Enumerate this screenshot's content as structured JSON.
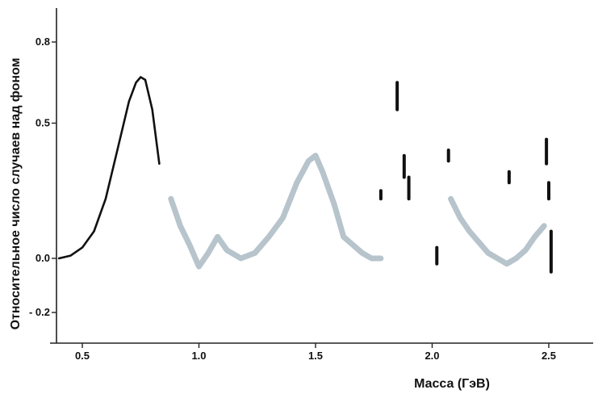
{
  "chart_data": {
    "type": "line",
    "title": "",
    "xlabel": "Масса  (ГэВ)",
    "ylabel": "Относительное число случаев над фоном",
    "xlim": [
      0.4,
      2.6
    ],
    "ylim": [
      -0.3,
      0.9
    ],
    "x_ticks": [
      {
        "value": 0.5,
        "label": "0.5"
      },
      {
        "value": 1.0,
        "label": "1.0"
      },
      {
        "value": 1.5,
        "label": "1.5"
      },
      {
        "value": 2.0,
        "label": "2.0"
      },
      {
        "value": 2.5,
        "label": "2.5"
      }
    ],
    "y_ticks": [
      {
        "value": 0.8,
        "label": "0.8"
      },
      {
        "value": 0.5,
        "label": "0.5"
      },
      {
        "value": 0.0,
        "label": "0.0"
      },
      {
        "value": -0.2,
        "label": "- 0.2"
      }
    ],
    "grid": false,
    "series": [
      {
        "style": "solid",
        "x": [
          0.4,
          0.45,
          0.5,
          0.55,
          0.6,
          0.65,
          0.7,
          0.73,
          0.75,
          0.77,
          0.8,
          0.83
        ],
        "y": [
          0.0,
          0.01,
          0.04,
          0.1,
          0.22,
          0.4,
          0.58,
          0.65,
          0.67,
          0.66,
          0.55,
          0.35
        ]
      },
      {
        "style": "smeared",
        "x": [
          0.88,
          0.92,
          0.96,
          1.0,
          1.04,
          1.08,
          1.12,
          1.18,
          1.24,
          1.3,
          1.36,
          1.42,
          1.47,
          1.5,
          1.53,
          1.58,
          1.62,
          1.66,
          1.7,
          1.74,
          1.78
        ],
        "y": [
          0.22,
          0.12,
          0.05,
          -0.03,
          0.02,
          0.08,
          0.03,
          0.0,
          0.02,
          0.08,
          0.15,
          0.28,
          0.36,
          0.38,
          0.32,
          0.2,
          0.08,
          0.05,
          0.02,
          0.0,
          0.0
        ]
      },
      {
        "style": "smeared",
        "x": [
          2.08,
          2.12,
          2.16,
          2.2,
          2.24,
          2.28,
          2.32,
          2.36,
          2.4,
          2.44,
          2.48
        ],
        "y": [
          0.22,
          0.15,
          0.1,
          0.06,
          0.02,
          0.0,
          -0.02,
          0.0,
          0.03,
          0.08,
          0.12
        ]
      }
    ],
    "spikes": [
      {
        "x": 1.78,
        "y0": 0.22,
        "y1": 0.25
      },
      {
        "x": 1.85,
        "y0": 0.55,
        "y1": 0.65
      },
      {
        "x": 1.88,
        "y0": 0.3,
        "y1": 0.38
      },
      {
        "x": 1.9,
        "y0": 0.22,
        "y1": 0.3
      },
      {
        "x": 2.02,
        "y0": -0.02,
        "y1": 0.04
      },
      {
        "x": 2.07,
        "y0": 0.36,
        "y1": 0.4
      },
      {
        "x": 2.33,
        "y0": 0.28,
        "y1": 0.32
      },
      {
        "x": 2.49,
        "y0": 0.35,
        "y1": 0.44
      },
      {
        "x": 2.5,
        "y0": 0.22,
        "y1": 0.28
      },
      {
        "x": 2.51,
        "y0": -0.05,
        "y1": 0.1
      }
    ]
  }
}
